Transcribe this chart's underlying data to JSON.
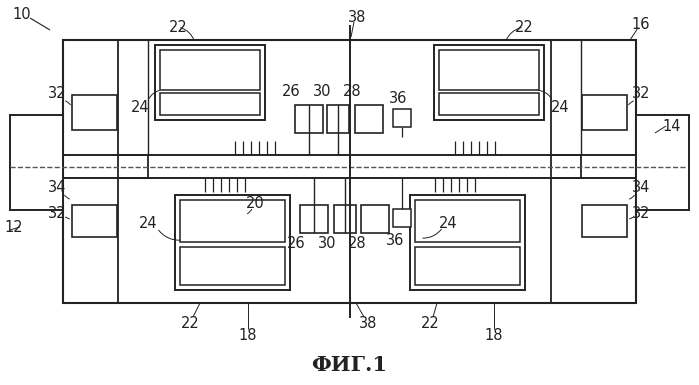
{
  "background_color": "#ffffff",
  "line_color": "#222222",
  "title": "ФИГ.1",
  "title_fontsize": 15,
  "label_fontsize": 10.5,
  "fig_width": 6.99,
  "fig_height": 3.85,
  "dpi": 100
}
